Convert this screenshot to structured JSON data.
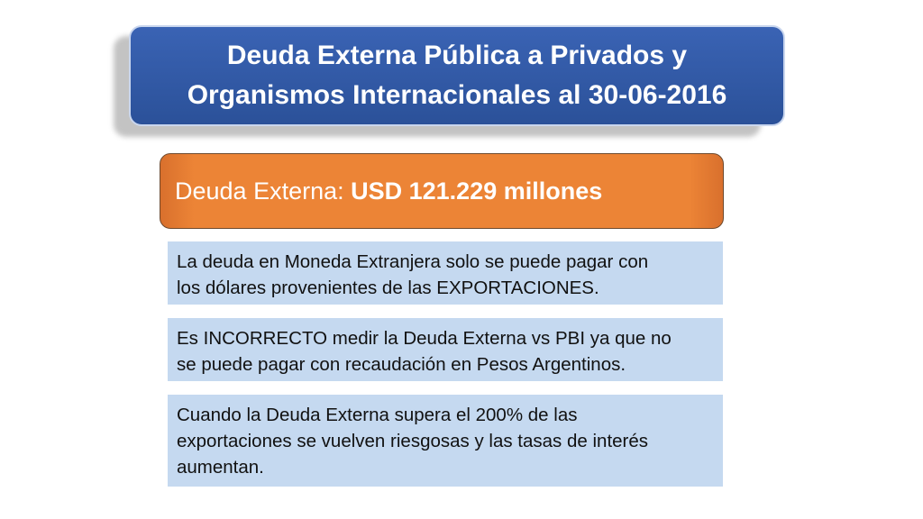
{
  "title": {
    "line1": "Deuda Externa Pública a Privados y",
    "line2": "Organismos Internacionales al 30-06-2016"
  },
  "summary": {
    "label": "Deuda Externa: ",
    "value": "USD 121.229 millones"
  },
  "points": [
    {
      "line1": "La deuda en Moneda Extranjera solo se puede pagar con",
      "line2": "los dólares provenientes de las EXPORTACIONES."
    },
    {
      "line1": "Es INCORRECTO medir la Deuda Externa vs PBI ya que no",
      "line2": "se puede pagar con recaudación en Pesos Argentinos."
    },
    {
      "line1": "Cuando la Deuda Externa supera el 200% de las",
      "line2": "exportaciones se vuelven riesgosas y las tasas de interés",
      "line3": "aumentan."
    }
  ],
  "colors": {
    "title_bg": "#2f579f",
    "summary_bg": "#ec8436",
    "info_bg": "#c5d9f0"
  }
}
